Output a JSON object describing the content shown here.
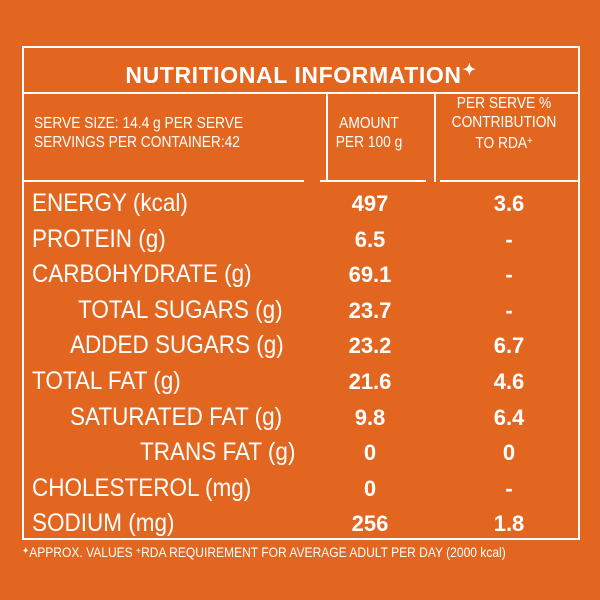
{
  "title": "NUTRITIONAL INFORMATION",
  "title_symbol": "✦",
  "header": {
    "serve_size": "SERVE SIZE: 14.4 g PER SERVE",
    "servings_per_container": "SERVINGS PER CONTAINER:42",
    "amount_line1": "AMOUNT",
    "amount_line2": "PER 100 g",
    "rda_line1": "PER SERVE %",
    "rda_line2": "CONTRIBUTION",
    "rda_line3": "TO RDA",
    "rda_symbol": "+"
  },
  "rows": [
    {
      "label": "ENERGY (kcal)",
      "amount": "497",
      "rda": "3.6"
    },
    {
      "label": "PROTEIN (g)",
      "amount": "6.5",
      "rda": "-"
    },
    {
      "label": "CARBOHYDRATE (g)",
      "amount": "69.1",
      "rda": "-"
    },
    {
      "label": "TOTAL SUGARS (g)",
      "amount": "23.7",
      "rda": "-"
    },
    {
      "label": "ADDED SUGARS (g)",
      "amount": "23.2",
      "rda": "6.7"
    },
    {
      "label": "TOTAL FAT (g)",
      "amount": "21.6",
      "rda": "4.6"
    },
    {
      "label": "SATURATED FAT (g)",
      "amount": "9.8",
      "rda": "6.4"
    },
    {
      "label": "TRANS FAT (g)",
      "amount": "0",
      "rda": "0"
    },
    {
      "label": "CHOLESTEROL (mg)",
      "amount": "0",
      "rda": "-"
    },
    {
      "label": "SODIUM (mg)",
      "amount": "256",
      "rda": "1.8"
    }
  ],
  "footnote": {
    "symbol1": "✦",
    "text1": "APPROX. VALUES",
    "symbol2": "+",
    "text2": "RDA REQUIREMENT FOR AVERAGE ADULT PER DAY (2000 kcal)"
  },
  "colors": {
    "background": "#e2661f",
    "text": "#ffffff"
  }
}
